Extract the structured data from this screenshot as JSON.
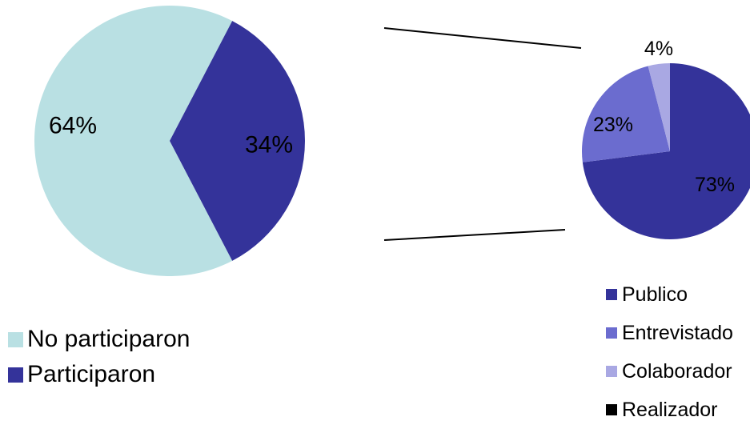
{
  "chart_data": [
    {
      "type": "pie",
      "slices": [
        {
          "name": "No participaron",
          "value": 64,
          "label": "64%",
          "color": "#b9e0e3"
        },
        {
          "name": "Participaron",
          "value": 34,
          "label": "34%",
          "color": "#34339a"
        }
      ],
      "legend": [
        "No participaron",
        "Participaron"
      ],
      "legend_position": "bottom-left"
    },
    {
      "type": "pie",
      "slices": [
        {
          "name": "Publico",
          "value": 73,
          "label": "73%",
          "color": "#34339a"
        },
        {
          "name": "Entrevistado",
          "value": 23,
          "label": "23%",
          "color": "#6b6ccf"
        },
        {
          "name": "Colaborador",
          "value": 4,
          "label": "4%",
          "color": "#a9a8e3"
        },
        {
          "name": "Realizador",
          "value": 0,
          "label": "",
          "color": "#000000"
        }
      ],
      "legend": [
        "Publico",
        "Entrevistado",
        "Colaborador",
        "Realizador"
      ],
      "legend_position": "bottom-right",
      "exploded_from": "Participaron"
    }
  ]
}
